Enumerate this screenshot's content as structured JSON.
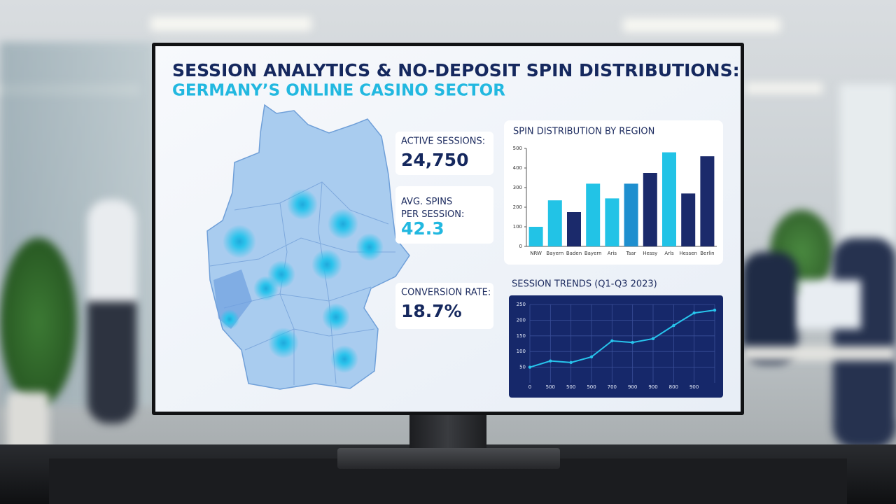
{
  "header": {
    "title": "SESSION ANALYTICS & NO-DEPOSIT SPIN DISTRIBUTIONS:",
    "subtitle": "GERMANY’S ONLINE CASINO SECTOR"
  },
  "kpis": [
    {
      "label": "ACTIVE SESSIONS:",
      "value": "24,750"
    },
    {
      "label": "AVG. SPINS PER SESSION:",
      "value": "42.3"
    },
    {
      "label": "CONVERSION RATE:",
      "value": "18.7%"
    }
  ],
  "chart_data": [
    {
      "type": "bar",
      "title": "SPIN DISTRIBUTION BY REGION",
      "categories": [
        "NRW",
        "Bayern",
        "Baden",
        "Bayern",
        "Aris",
        "Tsar",
        "Hessy",
        "Arls",
        "Hessen",
        "Berlin"
      ],
      "values": [
        100,
        235,
        175,
        320,
        245,
        320,
        375,
        480,
        270,
        460
      ],
      "colors": [
        "#22c3e6",
        "#22c3e6",
        "#1b2a6b",
        "#22c3e6",
        "#22c3e6",
        "#1e8fcf",
        "#1b2a6b",
        "#22c3e6",
        "#1b2a6b",
        "#1b2a6b"
      ],
      "ylim": [
        0,
        500
      ],
      "yticks": [
        0,
        100,
        200,
        300,
        400,
        500
      ]
    },
    {
      "type": "line",
      "title": "SESSION TRENDS (Q1-Q3 2023)",
      "categories": [
        "0",
        "500",
        "500",
        "500",
        "700",
        "900",
        "900",
        "800",
        "900",
        null
      ],
      "values": [
        50,
        70,
        65,
        83,
        134,
        129,
        141,
        183,
        223,
        232
      ],
      "color": "#27c4ec",
      "ylim": [
        0,
        250
      ],
      "yticks": [
        50,
        100,
        150,
        200,
        250
      ],
      "grid": true
    }
  ]
}
